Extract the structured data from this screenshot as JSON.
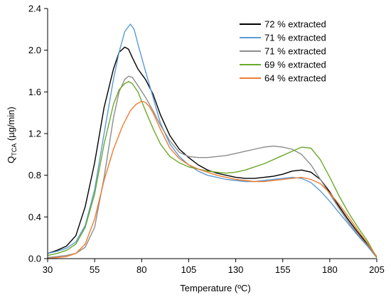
{
  "chart_data": {
    "type": "line",
    "title": "",
    "xlabel": "Temperature (ºC)",
    "ylabel": {
      "main": "Q",
      "sub": "TCA",
      "unit": " (µg/min)"
    },
    "xlim": [
      30,
      205
    ],
    "ylim": [
      0,
      2.4
    ],
    "xticks": [
      30,
      55,
      80,
      105,
      130,
      155,
      180,
      205
    ],
    "yticks": [
      "0.0",
      "0.4",
      "0.8",
      "1.2",
      "1.6",
      "2.0",
      "2.4"
    ],
    "legend": "top-right",
    "grid": false,
    "series": [
      {
        "name": "72 % extracted",
        "color": "#000000",
        "x": [
          30,
          35,
          40,
          45,
          50,
          55,
          60,
          65,
          68,
          71,
          73,
          75,
          78,
          82,
          86,
          90,
          95,
          100,
          105,
          110,
          115,
          120,
          125,
          130,
          135,
          140,
          145,
          150,
          155,
          160,
          165,
          170,
          175,
          180,
          185,
          190,
          195,
          200,
          205
        ],
        "y": [
          0.05,
          0.08,
          0.12,
          0.22,
          0.5,
          0.92,
          1.45,
          1.82,
          1.98,
          2.03,
          2.01,
          1.93,
          1.82,
          1.72,
          1.58,
          1.38,
          1.18,
          1.05,
          0.97,
          0.9,
          0.85,
          0.82,
          0.8,
          0.78,
          0.77,
          0.77,
          0.78,
          0.79,
          0.81,
          0.84,
          0.85,
          0.83,
          0.76,
          0.64,
          0.5,
          0.37,
          0.25,
          0.14,
          0.01
        ]
      },
      {
        "name": "71 % extracted",
        "color": "#5b9bd5",
        "x": [
          30,
          35,
          40,
          45,
          50,
          55,
          60,
          65,
          68,
          71,
          74,
          76,
          78,
          82,
          86,
          90,
          95,
          100,
          105,
          110,
          115,
          120,
          125,
          130,
          135,
          140,
          145,
          150,
          155,
          160,
          165,
          170,
          175,
          180,
          185,
          190,
          195,
          200,
          205
        ],
        "y": [
          0.05,
          0.07,
          0.1,
          0.16,
          0.32,
          0.66,
          1.2,
          1.72,
          1.98,
          2.18,
          2.25,
          2.2,
          2.06,
          1.8,
          1.55,
          1.3,
          1.1,
          0.98,
          0.9,
          0.84,
          0.8,
          0.78,
          0.76,
          0.75,
          0.74,
          0.74,
          0.75,
          0.76,
          0.77,
          0.78,
          0.77,
          0.73,
          0.65,
          0.55,
          0.44,
          0.33,
          0.22,
          0.12,
          0.01
        ]
      },
      {
        "name": "71 % extracted",
        "color": "#8c8c8c",
        "x": [
          30,
          35,
          40,
          45,
          50,
          55,
          60,
          65,
          68,
          71,
          73,
          75,
          78,
          82,
          86,
          90,
          95,
          100,
          105,
          110,
          115,
          120,
          125,
          130,
          135,
          140,
          145,
          150,
          155,
          160,
          165,
          170,
          175,
          180,
          185,
          190,
          195,
          200,
          205
        ],
        "y": [
          0.01,
          0.02,
          0.03,
          0.05,
          0.11,
          0.3,
          0.78,
          1.35,
          1.6,
          1.72,
          1.75,
          1.74,
          1.66,
          1.55,
          1.42,
          1.28,
          1.13,
          1.02,
          0.98,
          0.97,
          0.97,
          0.98,
          0.99,
          1.01,
          1.03,
          1.05,
          1.07,
          1.08,
          1.07,
          1.05,
          1.0,
          0.9,
          0.76,
          0.62,
          0.48,
          0.35,
          0.23,
          0.13,
          0.01
        ]
      },
      {
        "name": "69 % extracted",
        "color": "#6aaa2a",
        "x": [
          30,
          35,
          40,
          45,
          50,
          55,
          60,
          65,
          68,
          71,
          73,
          75,
          78,
          82,
          86,
          90,
          95,
          100,
          105,
          110,
          115,
          120,
          125,
          130,
          135,
          140,
          145,
          150,
          155,
          160,
          165,
          170,
          175,
          180,
          185,
          190,
          195,
          200,
          205
        ],
        "y": [
          0.03,
          0.05,
          0.08,
          0.14,
          0.3,
          0.62,
          1.1,
          1.48,
          1.62,
          1.68,
          1.7,
          1.68,
          1.6,
          1.42,
          1.25,
          1.1,
          0.98,
          0.92,
          0.88,
          0.86,
          0.84,
          0.83,
          0.82,
          0.83,
          0.85,
          0.88,
          0.91,
          0.95,
          0.99,
          1.03,
          1.07,
          1.06,
          0.95,
          0.78,
          0.6,
          0.44,
          0.3,
          0.17,
          0.01
        ]
      },
      {
        "name": "64 % extracted",
        "color": "#ed7d31",
        "x": [
          30,
          35,
          40,
          45,
          50,
          55,
          60,
          65,
          70,
          74,
          77,
          80,
          82,
          84,
          86,
          90,
          95,
          100,
          105,
          110,
          115,
          120,
          125,
          130,
          135,
          140,
          145,
          150,
          155,
          160,
          165,
          170,
          175,
          180,
          185,
          190,
          195,
          200,
          205
        ],
        "y": [
          0.0,
          0.01,
          0.02,
          0.05,
          0.14,
          0.38,
          0.75,
          1.05,
          1.28,
          1.42,
          1.48,
          1.51,
          1.5,
          1.46,
          1.4,
          1.24,
          1.06,
          0.96,
          0.9,
          0.86,
          0.83,
          0.8,
          0.78,
          0.76,
          0.75,
          0.74,
          0.74,
          0.75,
          0.76,
          0.77,
          0.78,
          0.76,
          0.72,
          0.63,
          0.52,
          0.4,
          0.27,
          0.15,
          0.02
        ]
      }
    ]
  }
}
